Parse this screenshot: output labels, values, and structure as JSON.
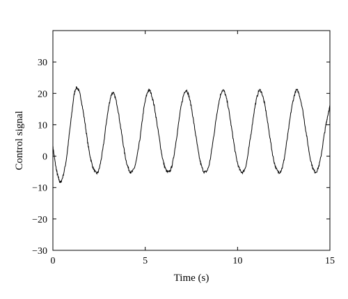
{
  "chart_data": {
    "type": "line",
    "title": "",
    "xlabel": "Time (s)",
    "ylabel": "Control signal",
    "xlim": [
      0,
      15
    ],
    "ylim": [
      -30,
      40
    ],
    "x_ticks": [
      0,
      5,
      10,
      15
    ],
    "y_ticks": [
      -30,
      -20,
      -10,
      0,
      10,
      20,
      30
    ],
    "x_tick_labels": [
      "0",
      "5",
      "10",
      "15"
    ],
    "y_tick_labels": [
      "−30",
      "−20",
      "−10",
      "0",
      "10",
      "20",
      "30"
    ],
    "grid": false,
    "legend": "none",
    "line_color": "#000000",
    "series": [
      {
        "x": [
          0,
          0.15,
          0.3,
          0.45,
          0.7,
          0.95,
          1.2,
          1.45,
          1.7,
          1.95,
          2.2,
          2.45,
          2.7,
          2.95,
          3.2,
          3.45,
          3.7,
          3.95,
          4.2,
          4.45,
          4.7,
          4.95,
          5.2,
          5.45,
          5.7,
          5.95,
          6.2,
          6.45,
          6.7,
          6.95,
          7.2,
          7.45,
          7.7,
          7.95,
          8.2,
          8.45,
          8.7,
          8.95,
          9.2,
          9.45,
          9.7,
          9.95,
          10.2,
          10.45,
          10.7,
          10.95,
          11.2,
          11.45,
          11.7,
          11.95,
          12.2,
          12.45,
          12.7,
          12.95,
          13.2,
          13.45,
          13.7,
          13.95,
          14.2,
          14.45,
          14.7,
          14.85,
          15.0
        ],
        "y": [
          3,
          -3,
          -7,
          -8,
          -2,
          10,
          21,
          20,
          12,
          2,
          -4,
          -5,
          2,
          13,
          20,
          17,
          8,
          -1,
          -5,
          -3,
          5,
          16,
          21,
          17,
          8,
          -1,
          -5,
          -3,
          6,
          16,
          21,
          17,
          8,
          -1,
          -5,
          -3,
          6,
          16,
          21,
          17,
          8,
          -1,
          -5,
          -3,
          6,
          16,
          21,
          17,
          8,
          -1,
          -5,
          -3,
          6,
          16,
          21,
          17,
          8,
          -1,
          -5,
          -2,
          7,
          12,
          16
        ]
      }
    ]
  }
}
